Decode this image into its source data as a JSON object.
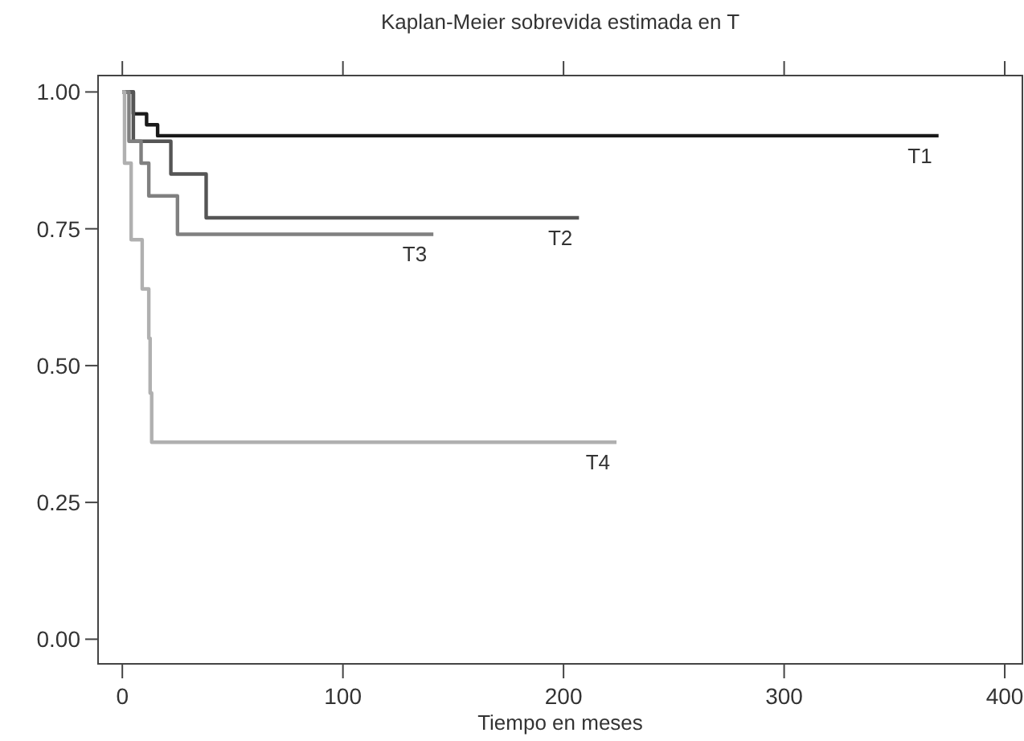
{
  "chart_data": {
    "type": "step",
    "title": "Kaplan-Meier sobrevida estimada en T",
    "xlabel": "Tiempo en meses",
    "xlim": [
      -11,
      408
    ],
    "ylim": [
      -0.045,
      1.03
    ],
    "xticks": [
      0,
      100,
      200,
      300,
      400
    ],
    "yticks": [
      {
        "value": 0,
        "label": "0.00"
      },
      {
        "value": 0.25,
        "label": "0.25"
      },
      {
        "value": 0.5,
        "label": "0.50"
      },
      {
        "value": 0.75,
        "label": "0.75"
      },
      {
        "value": 1,
        "label": "1.00"
      }
    ],
    "grid": false,
    "marker": "none",
    "line_style": "solid",
    "series": [
      {
        "name": "T1",
        "color": "#1a1a1a",
        "x": [
          0,
          5,
          11,
          16,
          370
        ],
        "values": [
          1,
          0.96,
          0.94,
          0.92,
          0.92
        ]
      },
      {
        "name": "T2",
        "color": "#555555",
        "x": [
          0,
          5,
          22,
          38,
          207
        ],
        "values": [
          1,
          0.91,
          0.85,
          0.77,
          0.77
        ]
      },
      {
        "name": "T3",
        "color": "#808080",
        "x": [
          0,
          3,
          8.5,
          12,
          25,
          141
        ],
        "values": [
          1,
          0.91,
          0.87,
          0.81,
          0.74,
          0.74
        ]
      },
      {
        "name": "T4",
        "color": "#b0b0b0",
        "x": [
          0,
          1,
          4,
          9,
          12,
          12.6,
          13.3,
          224
        ],
        "values": [
          1,
          0.87,
          0.73,
          0.64,
          0.55,
          0.45,
          0.36,
          0.36
        ]
      }
    ]
  }
}
